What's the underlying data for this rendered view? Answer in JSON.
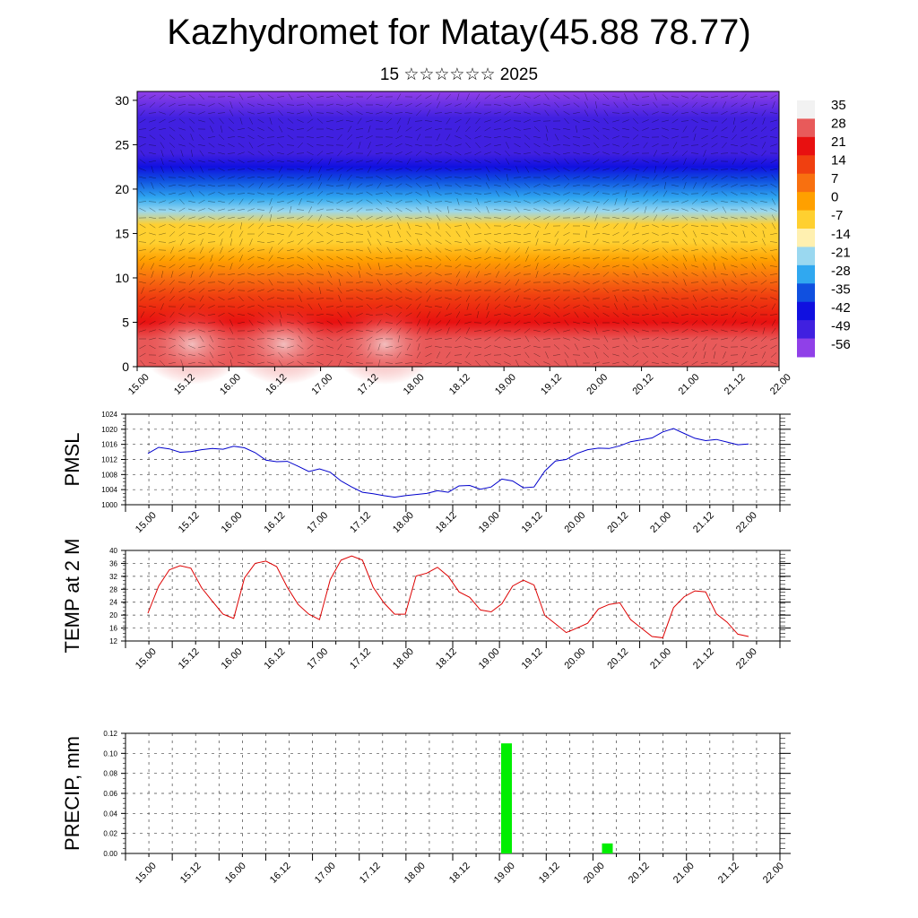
{
  "title": "Kazhydromet for Matay(45.88 78.77)",
  "subtitle": "15 ☆☆☆☆☆☆ 2025",
  "time_labels": [
    "15.00",
    "15.12",
    "16.00",
    "16.12",
    "17.00",
    "17.12",
    "18.00",
    "18.12",
    "19.00",
    "19.12",
    "20.00",
    "20.12",
    "21.00",
    "21.12",
    "22.00"
  ],
  "chart_data": [
    {
      "type": "heatmap",
      "name": "cross-section",
      "ylim": [
        0,
        31
      ],
      "yticks": [
        0,
        5,
        10,
        15,
        20,
        25,
        30
      ],
      "colorbar_labels": [
        "35",
        "28",
        "21",
        "14",
        "7",
        "0",
        "-7",
        "-14",
        "-21",
        "-28",
        "-35",
        "-42",
        "-49",
        "-56"
      ],
      "colorbar_stops": [
        "#f2f2f2",
        "#e85a5a",
        "#e81010",
        "#f04010",
        "#f87010",
        "#ffa000",
        "#ffd030",
        "#fff0b0",
        "#9ad8f0",
        "#30a8f0",
        "#1050e0",
        "#1010e0",
        "#4020e0",
        "#9040e8"
      ],
      "layer_temps": [
        [
          0,
          26
        ],
        [
          3,
          30
        ],
        [
          5,
          22
        ],
        [
          8,
          12
        ],
        [
          10,
          5
        ],
        [
          12,
          0
        ],
        [
          14,
          -8
        ],
        [
          16,
          -12
        ],
        [
          17.5,
          -20
        ],
        [
          19,
          -30
        ],
        [
          21,
          -40
        ],
        [
          22.5,
          -48
        ],
        [
          24,
          -54
        ],
        [
          26,
          -52
        ],
        [
          28,
          -56
        ],
        [
          31,
          -60
        ]
      ]
    },
    {
      "type": "line",
      "ylabel": "PMSL",
      "ylim": [
        1000,
        1024
      ],
      "yticks": [
        1000,
        1004,
        1008,
        1012,
        1016,
        1020,
        1024
      ],
      "color": "#0000cc",
      "x": [
        0,
        0.125,
        0.25,
        0.375,
        0.5,
        0.625,
        0.75,
        0.875,
        1,
        1.125,
        1.25,
        1.375,
        1.5,
        1.625,
        1.75,
        1.875,
        2,
        2.125,
        2.25,
        2.375,
        2.5,
        2.625,
        2.75,
        2.875,
        3,
        3.125,
        3.25,
        3.375,
        3.5,
        3.625,
        3.75,
        3.875,
        4,
        4.125,
        4.25,
        4.375,
        4.5,
        4.625,
        4.75,
        4.875,
        5,
        5.125,
        5.25,
        5.375,
        5.5,
        5.625,
        5.75,
        5.875,
        6,
        6.125,
        6.25,
        6.375,
        6.5,
        6.625,
        6.75,
        6.875,
        7
      ],
      "values": [
        1013.6,
        1015.2,
        1014.8,
        1013.9,
        1014.1,
        1014.6,
        1014.9,
        1014.7,
        1015.5,
        1015.1,
        1013.8,
        1011.8,
        1011.4,
        1011.5,
        1010.2,
        1008.8,
        1009.5,
        1008.6,
        1006.3,
        1004.7,
        1003.3,
        1002.9,
        1002.4,
        1002.0,
        1002.4,
        1002.7,
        1003.0,
        1003.7,
        1003.3,
        1005.0,
        1005.1,
        1004.1,
        1004.7,
        1006.8,
        1006.3,
        1004.5,
        1004.7,
        1008.9,
        1011.6,
        1012.0,
        1013.6,
        1014.6,
        1015.0,
        1014.9,
        1015.6,
        1016.7,
        1017.2,
        1017.7,
        1019.3,
        1020.2,
        1018.9,
        1017.6,
        1017.0,
        1017.3,
        1016.6,
        1015.9,
        1016.1
      ]
    },
    {
      "type": "line",
      "ylabel": "TEMP at 2 M",
      "ylim": [
        12,
        40
      ],
      "yticks": [
        12,
        16,
        20,
        24,
        28,
        32,
        36,
        40
      ],
      "color": "#dd0000",
      "x": [
        0,
        0.125,
        0.25,
        0.375,
        0.5,
        0.625,
        0.75,
        0.875,
        1,
        1.125,
        1.25,
        1.375,
        1.5,
        1.625,
        1.75,
        1.875,
        2,
        2.125,
        2.25,
        2.375,
        2.5,
        2.625,
        2.75,
        2.875,
        3,
        3.125,
        3.25,
        3.375,
        3.5,
        3.625,
        3.75,
        3.875,
        4,
        4.125,
        4.25,
        4.375,
        4.5,
        4.625,
        4.75,
        4.875,
        5,
        5.125,
        5.25,
        5.375,
        5.5,
        5.625,
        5.75,
        5.875,
        6,
        6.125,
        6.25,
        6.375,
        6.5,
        6.625,
        6.75,
        6.875,
        7
      ],
      "values": [
        20.6,
        29.0,
        34.0,
        35.3,
        34.5,
        28.5,
        24.3,
        20.3,
        19.0,
        31.5,
        36.0,
        36.7,
        35.0,
        28.6,
        23.3,
        20.3,
        18.6,
        31.0,
        37.0,
        38.3,
        37.0,
        28.6,
        23.8,
        20.3,
        20.3,
        32.1,
        33.0,
        34.8,
        32.0,
        27.2,
        25.5,
        21.6,
        21.0,
        23.5,
        29.0,
        30.8,
        29.3,
        19.9,
        17.3,
        14.6,
        16.0,
        17.5,
        21.9,
        23.3,
        23.8,
        18.6,
        16.0,
        13.4,
        13.0,
        22.3,
        25.7,
        27.5,
        27.2,
        20.4,
        17.8,
        14.1,
        13.4
      ]
    },
    {
      "type": "bar",
      "ylabel": "PRECIP, mm",
      "ylim": [
        0,
        0.12
      ],
      "yticks": [
        "0.00",
        "0.02",
        "0.04",
        "0.06",
        "0.08",
        "0.10",
        "0.12"
      ],
      "color": "#00ee00",
      "x": [
        4.0,
        5.125
      ],
      "values": [
        0.11,
        0.01
      ]
    }
  ]
}
